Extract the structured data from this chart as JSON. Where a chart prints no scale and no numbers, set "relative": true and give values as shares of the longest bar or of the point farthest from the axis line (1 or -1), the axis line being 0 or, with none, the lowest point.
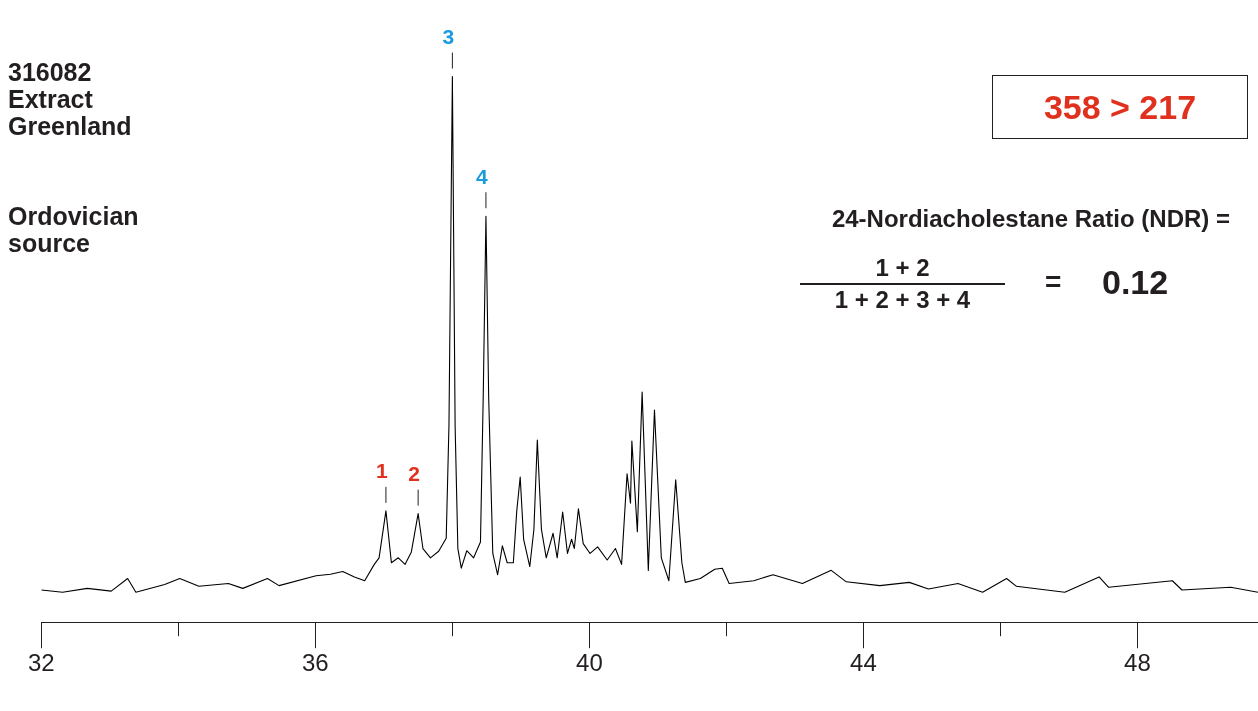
{
  "chart_data": {
    "type": "line",
    "relative": true,
    "title": "316082 Extract Greenland",
    "subtitle": "Ordovician source",
    "xlim": [
      32,
      49.76
    ],
    "xticks": [
      32,
      {
        "value": 34,
        "label": null
      },
      36,
      {
        "value": 38,
        "label": null
      },
      40,
      {
        "value": 42,
        "label": null
      },
      44,
      {
        "value": 46,
        "label": null
      },
      48
    ],
    "grid": false,
    "legend": false,
    "marker": "none",
    "line_style": "solid",
    "annotations": [
      {
        "text": "1",
        "x": 37.03,
        "y": 0.204
      },
      {
        "text": "2",
        "x": 37.5,
        "y": 0.199
      },
      {
        "text": "3",
        "x": 38.0,
        "y": 1.0
      },
      {
        "text": "4",
        "x": 38.49,
        "y": 0.744
      },
      "358 > 217",
      "24-Nordiacholestane Ratio (NDR) =",
      "1 + 2",
      "1 + 2 + 3 + 4",
      "=",
      "0.12"
    ],
    "series": [
      {
        "color": "#000000",
        "x": [
          32.0,
          32.31,
          32.67,
          33.02,
          33.26,
          33.38,
          33.8,
          34.02,
          34.3,
          34.73,
          34.94,
          35.3,
          35.47,
          36.01,
          36.22,
          36.4,
          36.57,
          36.72,
          36.86,
          36.93,
          37.03,
          37.11,
          37.21,
          37.31,
          37.4,
          37.5,
          37.57,
          37.68,
          37.8,
          37.91,
          37.95,
          38.0,
          38.04,
          38.08,
          38.13,
          38.21,
          38.31,
          38.41,
          38.45,
          38.49,
          38.53,
          38.59,
          38.66,
          38.73,
          38.8,
          38.89,
          38.94,
          38.99,
          39.04,
          39.13,
          39.19,
          39.24,
          39.3,
          39.37,
          39.47,
          39.53,
          39.61,
          39.68,
          39.74,
          39.78,
          39.84,
          39.91,
          40.01,
          40.12,
          40.26,
          40.38,
          40.47,
          40.55,
          40.6,
          40.62,
          40.7,
          40.77,
          40.86,
          40.95,
          41.05,
          41.16,
          41.26,
          41.35,
          41.4,
          41.62,
          41.83,
          41.94,
          42.04,
          42.4,
          42.68,
          43.11,
          43.53,
          43.75,
          44.24,
          44.67,
          44.95,
          45.38,
          45.74,
          46.09,
          46.23,
          46.94,
          47.44,
          47.58,
          48.51,
          48.65,
          49.36,
          49.76
        ],
        "values": [
          0.059,
          0.055,
          0.062,
          0.057,
          0.08,
          0.055,
          0.069,
          0.08,
          0.066,
          0.071,
          0.062,
          0.08,
          0.067,
          0.085,
          0.088,
          0.093,
          0.083,
          0.076,
          0.106,
          0.118,
          0.204,
          0.109,
          0.118,
          0.106,
          0.128,
          0.199,
          0.135,
          0.118,
          0.13,
          0.154,
          0.36,
          1.0,
          0.36,
          0.135,
          0.099,
          0.131,
          0.118,
          0.147,
          0.412,
          0.744,
          0.412,
          0.126,
          0.087,
          0.14,
          0.109,
          0.109,
          0.204,
          0.266,
          0.152,
          0.102,
          0.17,
          0.334,
          0.17,
          0.118,
          0.163,
          0.118,
          0.202,
          0.126,
          0.152,
          0.135,
          0.208,
          0.144,
          0.126,
          0.138,
          0.114,
          0.135,
          0.106,
          0.272,
          0.218,
          0.332,
          0.166,
          0.422,
          0.095,
          0.389,
          0.118,
          0.076,
          0.261,
          0.109,
          0.073,
          0.08,
          0.097,
          0.099,
          0.071,
          0.076,
          0.087,
          0.071,
          0.095,
          0.074,
          0.067,
          0.073,
          0.061,
          0.071,
          0.055,
          0.08,
          0.066,
          0.055,
          0.083,
          0.064,
          0.076,
          0.059,
          0.064,
          0.055
        ]
      }
    ]
  }
}
